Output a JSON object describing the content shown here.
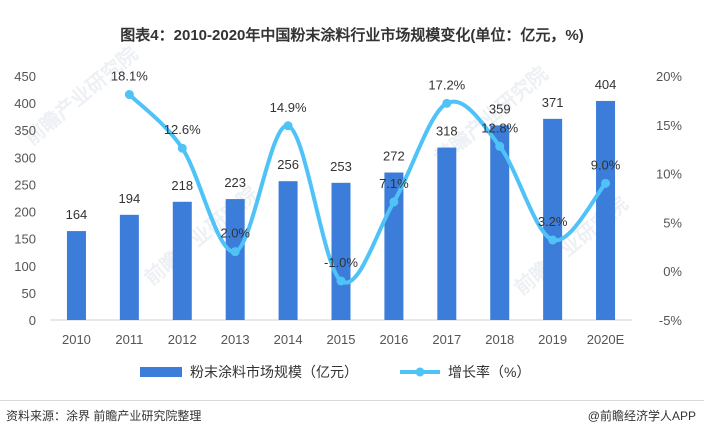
{
  "title": "图表4：2010-2020年中国粉末涂料行业市场规模变化(单位：亿元，%)",
  "source": "资料来源：涂界 前瞻产业研究院整理",
  "credit": "@前瞻经济学人APP",
  "watermark_text": "前瞻产业研究院",
  "colors": {
    "bar": "#3b7dd8",
    "line": "#4fc3f7",
    "axis_text": "#555555"
  },
  "chart_data": {
    "type": "bar",
    "categories": [
      "2010",
      "2011",
      "2012",
      "2013",
      "2014",
      "2015",
      "2016",
      "2017",
      "2018",
      "2019",
      "2020E"
    ],
    "series": [
      {
        "name": "粉末涂料市场规模（亿元）",
        "type": "bar",
        "axis": "left",
        "values": [
          164,
          194,
          218,
          223,
          256,
          253,
          272,
          318,
          359,
          371,
          404
        ],
        "labels": [
          "164",
          "194",
          "218",
          "223",
          "256",
          "253",
          "272",
          "318",
          "359",
          "371",
          "404"
        ]
      },
      {
        "name": "增长率（%）",
        "type": "line",
        "axis": "right",
        "smooth": true,
        "values": [
          null,
          18.1,
          12.6,
          2.0,
          14.9,
          -1.0,
          7.1,
          17.2,
          12.8,
          3.2,
          9.0
        ],
        "labels": [
          "",
          "18.1%",
          "12.6%",
          "2.0%",
          "14.9%",
          "-1.0%",
          "7.1%",
          "17.2%",
          "12.8%",
          "3.2%",
          "9.0%"
        ]
      }
    ],
    "y_left": {
      "min": 0,
      "max": 450,
      "ticks": [
        "0",
        "50",
        "100",
        "150",
        "200",
        "250",
        "300",
        "350",
        "400",
        "450"
      ]
    },
    "y_right": {
      "min": -5,
      "max": 20,
      "ticks": [
        "-5%",
        "0%",
        "5%",
        "10%",
        "15%",
        "20%"
      ]
    },
    "legend_position": "bottom",
    "grid": false
  }
}
